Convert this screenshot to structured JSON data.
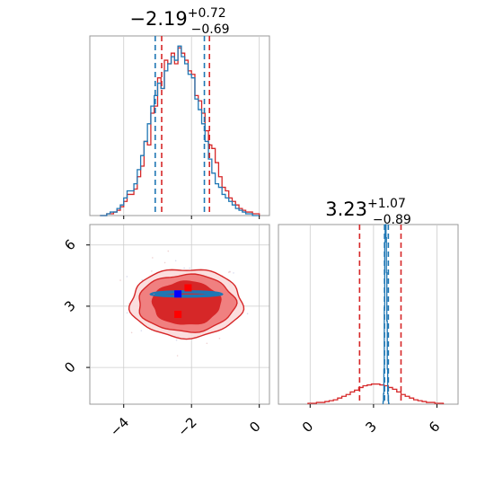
{
  "chart_data": {
    "type": "corner",
    "colors": {
      "series_a": "#d62728",
      "series_b": "#1f77b4",
      "dark_fill": "#d62728",
      "light_fill": "#f08080",
      "frame": "#999999",
      "grid": "#cccccc"
    },
    "series": [
      {
        "color": "#d62728"
      },
      {
        "color": "#1f77b4"
      }
    ],
    "grid": true,
    "panels": [
      {
        "id": "x_marginal",
        "type": "histogram",
        "title": {
          "main": "−2.19",
          "sup": "+0.72",
          "sub": "−0.69"
        },
        "xlim": [
          -5,
          0.3
        ],
        "quantile_lines": {
          "series_a": [
            -2.88,
            -2.19,
            -1.47
          ],
          "series_b": [
            -3.07,
            -2.2,
            -1.62
          ]
        },
        "quantile_visible": [
          0,
          2
        ],
        "series": [
          {
            "name_hint": "series_a",
            "bins": [
              -4.65,
              -4.55,
              -4.45,
              -4.35,
              -4.25,
              -4.15,
              -4.05,
              -3.95,
              -3.85,
              -3.75,
              -3.65,
              -3.55,
              -3.45,
              -3.35,
              -3.25,
              -3.15,
              -3.05,
              -2.95,
              -2.85,
              -2.75,
              -2.65,
              -2.55,
              -2.45,
              -2.35,
              -2.25,
              -2.15,
              -2.05,
              -1.95,
              -1.85,
              -1.75,
              -1.65,
              -1.55,
              -1.45,
              -1.35,
              -1.25,
              -1.15,
              -1.05,
              -0.95,
              -0.85,
              -0.75,
              -0.65,
              -0.55,
              -0.45,
              -0.35,
              -0.25,
              -0.15,
              -0.05
            ],
            "counts": [
              0,
              0,
              1,
              1,
              2,
              3,
              5,
              8,
              12,
              12,
              15,
              22,
              28,
              42,
              40,
              58,
              62,
              78,
              72,
              88,
              86,
              92,
              86,
              95,
              92,
              88,
              82,
              80,
              68,
              65,
              58,
              48,
              40,
              38,
              30,
              22,
              16,
              14,
              10,
              8,
              6,
              4,
              3,
              2,
              2,
              1,
              1
            ]
          },
          {
            "name_hint": "series_b",
            "bins": [
              -4.65,
              -4.55,
              -4.45,
              -4.35,
              -4.25,
              -4.15,
              -4.05,
              -3.95,
              -3.85,
              -3.75,
              -3.65,
              -3.55,
              -3.45,
              -3.35,
              -3.25,
              -3.15,
              -3.05,
              -2.95,
              -2.85,
              -2.75,
              -2.65,
              -2.55,
              -2.45,
              -2.35,
              -2.25,
              -2.15,
              -2.05,
              -1.95,
              -1.85,
              -1.75,
              -1.65,
              -1.55,
              -1.45,
              -1.35,
              -1.25,
              -1.15,
              -1.05,
              -0.95,
              -0.85,
              -0.75,
              -0.65,
              -0.55,
              -0.45,
              -0.35,
              -0.25,
              -0.15,
              -0.05
            ],
            "counts": [
              0,
              0,
              1,
              2,
              2,
              4,
              6,
              10,
              14,
              14,
              18,
              26,
              34,
              42,
              52,
              62,
              68,
              75,
              72,
              82,
              86,
              90,
              88,
              96,
              90,
              86,
              80,
              78,
              66,
              60,
              52,
              42,
              32,
              24,
              18,
              16,
              12,
              10,
              8,
              6,
              4,
              3,
              2,
              1,
              1,
              0,
              0
            ]
          }
        ]
      },
      {
        "id": "y_marginal",
        "type": "histogram",
        "title": {
          "main": "3.23",
          "sup": "+1.07",
          "sub": "−0.89"
        },
        "xlim": [
          -1.5,
          7
        ],
        "xticks": [
          0,
          3,
          6
        ],
        "xticklabels": [
          "0",
          "3",
          "6"
        ],
        "quantile_lines": {
          "series_a": [
            2.34,
            3.23,
            4.3
          ],
          "series_b": [
            3.52,
            3.6,
            3.7
          ]
        },
        "quantile_visible": [
          0,
          2
        ],
        "series": [
          {
            "name_hint": "series_a",
            "bins": [
              0.0,
              0.2,
              0.4,
              0.6,
              0.8,
              1.0,
              1.2,
              1.4,
              1.6,
              1.8,
              2.0,
              2.2,
              2.4,
              2.6,
              2.8,
              3.0,
              3.2,
              3.4,
              3.6,
              3.8,
              4.0,
              4.2,
              4.4,
              4.6,
              4.8,
              5.0,
              5.2,
              5.4,
              5.6,
              5.8,
              6.0,
              6.2
            ],
            "counts": [
              1,
              1,
              2,
              2,
              3,
              4,
              5,
              7,
              9,
              11,
              14,
              16,
              19,
              21,
              22,
              23,
              23,
              22,
              21,
              19,
              17,
              14,
              11,
              9,
              7,
              5,
              4,
              3,
              2,
              2,
              1,
              1
            ]
          },
          {
            "name_hint": "series_b",
            "bins": [
              3.46,
              3.48,
              3.5,
              3.52,
              3.54,
              3.56,
              3.58,
              3.6,
              3.62,
              3.64,
              3.66,
              3.68,
              3.7,
              3.72
            ],
            "counts": [
              3,
              12,
              40,
              110,
              185,
              200,
              205,
              190,
              150,
              95,
              40,
              12,
              4,
              1
            ]
          }
        ]
      },
      {
        "id": "joint",
        "type": "contour",
        "xlim": [
          -5,
          0.3
        ],
        "ylim": [
          -1.8,
          7
        ],
        "xticks": [
          -4,
          -2,
          0
        ],
        "xticklabels": [
          "−4",
          "−2",
          "0"
        ],
        "yticks": [
          0,
          3,
          6
        ],
        "yticklabels": [
          "0",
          "3",
          "6"
        ],
        "contours_series_a": {
          "center": [
            -2.15,
            3.15
          ],
          "radius": [
            [
              1.0,
              1.05
            ],
            [
              1.43,
              1.4
            ],
            [
              1.65,
              1.68
            ]
          ]
        },
        "contours_series_b": {
          "center": [
            -2.15,
            3.6
          ],
          "radius": [
            [
              2.1,
              0.14
            ],
            [
              1.85,
              0.1
            ],
            [
              1.55,
              0.07
            ]
          ]
        },
        "markers": [
          {
            "x": -2.4,
            "y": 3.6,
            "color": "#0000ff"
          },
          {
            "x": -2.4,
            "y": 2.6,
            "color": "#ff0000"
          },
          {
            "x": -2.1,
            "y": 3.9,
            "color": "#ff0000"
          }
        ]
      }
    ]
  }
}
